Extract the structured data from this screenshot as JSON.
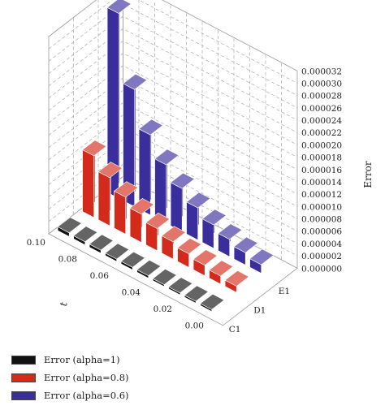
{
  "chart_data": {
    "type": "bar",
    "variant": "3d-bar",
    "x_axis_label": "t",
    "x_ticks": [
      "0.10",
      "0.08",
      "0.06",
      "0.04",
      "0.02",
      "0.00"
    ],
    "x": [
      0.1,
      0.09,
      0.08,
      0.07,
      0.06,
      0.05,
      0.04,
      0.03,
      0.02,
      0.01
    ],
    "depth_categories": [
      "C1",
      "D1",
      "E1"
    ],
    "z_axis_label": "Error",
    "z_ticks": [
      "0.000000",
      "0.000002",
      "0.000004",
      "0.000006",
      "0.000008",
      "0.000010",
      "0.000012",
      "0.000014",
      "0.000016",
      "0.000018",
      "0.000020",
      "0.000022",
      "0.000024",
      "0.000026",
      "0.000028",
      "0.000030",
      "0.000032"
    ],
    "zlim": [
      0,
      3.2e-05
    ],
    "series": [
      {
        "name": "Error (alpha=1)",
        "category": "C1",
        "color": "#111111",
        "values": [
          6e-07,
          5e-07,
          5e-07,
          4e-07,
          4e-07,
          4e-07,
          3e-07,
          3e-07,
          3e-07,
          3e-07
        ]
      },
      {
        "name": "Error (alpha=0.8)",
        "category": "D1",
        "color": "#d42a1c",
        "values": [
          1e-05,
          7.8e-06,
          6e-06,
          4.6e-06,
          3.6e-06,
          2.8e-06,
          2.2e-06,
          1.7e-06,
          1.3e-06,
          1e-06
        ]
      },
      {
        "name": "Error (alpha=0.6)",
        "category": "E1",
        "color": "#3a2d9c",
        "values": [
          3e-05,
          1.9e-05,
          1.3e-05,
          9.5e-06,
          7e-06,
          5.2e-06,
          3.8e-06,
          2.8e-06,
          2e-06,
          1.4e-06
        ]
      }
    ],
    "legend_position": "bottom-left",
    "grid": true
  }
}
